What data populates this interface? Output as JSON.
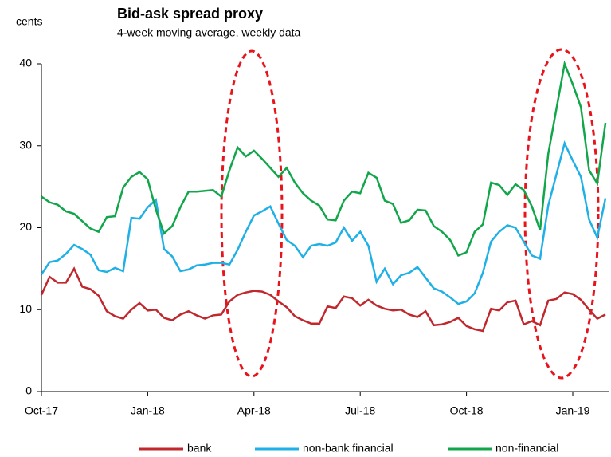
{
  "chart_data": {
    "type": "line",
    "title": "Bid-ask spread proxy",
    "subtitle": "4-week moving average, weekly data",
    "ylabel": "cents",
    "categories": [
      "Oct-17",
      null,
      null,
      null,
      null,
      null,
      null,
      null,
      null,
      null,
      null,
      null,
      null,
      "Jan-18",
      null,
      null,
      null,
      null,
      null,
      null,
      null,
      null,
      null,
      null,
      null,
      null,
      "Apr-18",
      null,
      null,
      null,
      null,
      null,
      null,
      null,
      null,
      null,
      null,
      null,
      null,
      "Jul-18",
      null,
      null,
      null,
      null,
      null,
      null,
      null,
      null,
      null,
      null,
      null,
      null,
      "Oct-18",
      null,
      null,
      null,
      null,
      null,
      null,
      null,
      null,
      null,
      null,
      null,
      null,
      "Jan-19",
      null,
      null,
      null,
      null
    ],
    "series": [
      {
        "name": "bank",
        "color": "#c0282d",
        "values": [
          11.8,
          14,
          13.3,
          13.3,
          15,
          12.8,
          12.5,
          11.7,
          9.8,
          9.2,
          8.9,
          10,
          10.8,
          9.9,
          10,
          9,
          8.7,
          9.4,
          9.8,
          9.3,
          8.9,
          9.3,
          9.4,
          11,
          11.8,
          12.1,
          12.3,
          12.2,
          11.8,
          11,
          10.3,
          9.2,
          8.7,
          8.3,
          8.3,
          10.4,
          10.2,
          11.6,
          11.4,
          10.5,
          11.2,
          10.5,
          10.1,
          9.9,
          10,
          9.4,
          9.1,
          9.8,
          8.1,
          8.2,
          8.5,
          9,
          8,
          7.6,
          7.4,
          10.1,
          9.9,
          10.9,
          11.1,
          8.2,
          8.6,
          8.1,
          11.1,
          11.3,
          12.1,
          11.9,
          11.2,
          10,
          8.9,
          9.4
        ]
      },
      {
        "name": "non-bank financial",
        "color": "#1fb0e6",
        "values": [
          14.3,
          15.8,
          16,
          16.8,
          17.9,
          17.4,
          16.7,
          14.8,
          14.6,
          15.1,
          14.7,
          21.2,
          21.1,
          22.5,
          23.4,
          17.4,
          16.5,
          14.7,
          14.9,
          15.4,
          15.5,
          15.7,
          15.7,
          15.5,
          17.3,
          19.5,
          21.5,
          22,
          22.6,
          20.5,
          18.5,
          17.8,
          16.4,
          17.8,
          18,
          17.8,
          18.2,
          20,
          18.4,
          19.5,
          17.8,
          13.4,
          15,
          13.1,
          14.2,
          14.5,
          15.2,
          13.9,
          12.6,
          12.2,
          11.5,
          10.7,
          11,
          12,
          14.5,
          18.3,
          19.5,
          20.3,
          20,
          18.3,
          16.6,
          16.2,
          22.7,
          26.5,
          30.3,
          28.2,
          26.2,
          21,
          18.8,
          23.6
        ]
      },
      {
        "name": "non-financial",
        "color": "#12a64a",
        "values": [
          23.8,
          23.1,
          22.8,
          22,
          21.7,
          20.8,
          19.9,
          19.5,
          21.3,
          21.4,
          24.9,
          26.2,
          26.8,
          25.9,
          22.2,
          19.3,
          20.2,
          22.5,
          24.4,
          24.4,
          24.5,
          24.6,
          23.8,
          27,
          29.8,
          28.7,
          29.4,
          28.4,
          27.3,
          26.2,
          27.3,
          25.5,
          24.2,
          23.3,
          22.7,
          21,
          20.9,
          23.3,
          24.4,
          24.2,
          26.7,
          26.1,
          23.3,
          22.9,
          20.6,
          20.9,
          22.2,
          22.1,
          20.2,
          19.5,
          18.5,
          16.6,
          17,
          19.5,
          20.4,
          25.5,
          25.2,
          24,
          25.3,
          24.6,
          22.6,
          19.7,
          29,
          34.5,
          40,
          37.5,
          34.7,
          27,
          25.4,
          32.8
        ]
      }
    ],
    "ylim": [
      0,
      40
    ],
    "yticks": [
      0,
      10,
      20,
      30,
      40
    ],
    "grid": false,
    "legend": "bottom"
  }
}
